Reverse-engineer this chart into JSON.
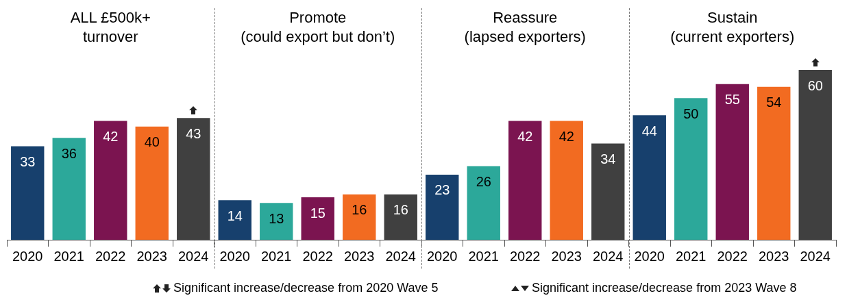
{
  "chart_data": {
    "type": "bar",
    "categories": [
      "2020",
      "2021",
      "2022",
      "2023",
      "2024",
      "2020",
      "2021",
      "2022",
      "2023",
      "2024",
      "2020",
      "2021",
      "2022",
      "2023",
      "2024",
      "2020",
      "2021",
      "2022",
      "2023",
      "2024"
    ],
    "values": [
      33,
      36,
      42,
      40,
      43,
      14,
      13,
      15,
      16,
      16,
      23,
      26,
      42,
      42,
      34,
      44,
      50,
      55,
      54,
      60
    ],
    "colors": [
      "#17406d",
      "#2ca89a",
      "#7b1450",
      "#f26b21",
      "#404040",
      "#17406d",
      "#2ca89a",
      "#7b1450",
      "#f26b21",
      "#404040",
      "#17406d",
      "#2ca89a",
      "#7b1450",
      "#f26b21",
      "#404040",
      "#17406d",
      "#2ca89a",
      "#7b1450",
      "#f26b21",
      "#404040"
    ],
    "data_labels": true,
    "annotations": [
      "ALL £500k+\nturnover",
      "Promote\n(could export but don’t)",
      "Reassure\n(lapsed exporters)",
      "Sustain\n(current exporters)",
      "Significant increase/decrease from 2020 Wave 5",
      "Significant increase/decrease from 2023 Wave 8"
    ]
  }
}
